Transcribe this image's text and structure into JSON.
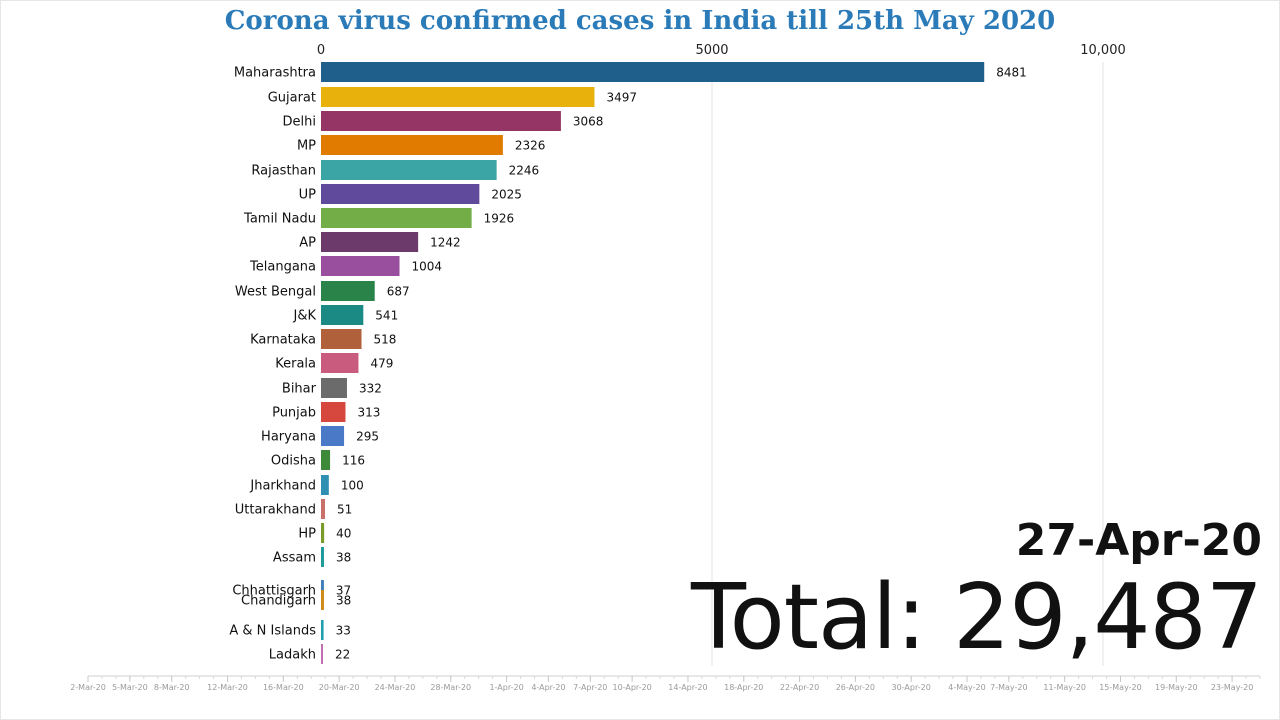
{
  "title": "Corona virus confirmed cases in India till 25th May 2020",
  "date": "27-Apr-20",
  "total": "Total: 29,487",
  "chart_data": {
    "type": "bar",
    "orientation": "horizontal",
    "title": "Corona virus confirmed cases in India till 25th May 2020",
    "xlim": [
      0,
      10000
    ],
    "x_ticks": [
      {
        "value": 0,
        "label": "0"
      },
      {
        "value": 5000,
        "label": "5000"
      },
      {
        "value": 10000,
        "label": "10,000"
      }
    ],
    "grid": true,
    "categories": [
      "Maharashtra",
      "Gujarat",
      "Delhi",
      "MP",
      "Rajasthan",
      "UP",
      "Tamil Nadu",
      "AP",
      "Telangana",
      "West Bengal",
      "J&K",
      "Karnataka",
      "Kerala",
      "Bihar",
      "Punjab",
      "Haryana",
      "Odisha",
      "Jharkhand",
      "Uttarakhand",
      "HP",
      "Assam",
      "Chhattisgarh",
      "Chandigarh",
      "A & N Islands",
      "Ladakh"
    ],
    "values": [
      8481,
      3497,
      3068,
      2326,
      2246,
      2025,
      1926,
      1242,
      1004,
      687,
      541,
      518,
      479,
      332,
      313,
      295,
      116,
      100,
      51,
      40,
      38,
      37,
      38,
      33,
      22
    ],
    "colors": [
      "#1f5f8b",
      "#e8b10c",
      "#953565",
      "#e07b00",
      "#3aa5a4",
      "#5f4a9b",
      "#72ad47",
      "#6c3b6b",
      "#9a4f9e",
      "#2a8449",
      "#1b8a85",
      "#b0603a",
      "#c95c7e",
      "#6b6b6b",
      "#d6473e",
      "#4a79c8",
      "#3f8a3a",
      "#2e8fb3",
      "#c9706a",
      "#7a9a2a",
      "#1e9a9a",
      "#3c7fb8",
      "#d08a1a",
      "#1f9faf",
      "#c070b0"
    ]
  },
  "timeline": {
    "labels": [
      "2-Mar-20",
      "5-Mar-20",
      "8-Mar-20",
      "12-Mar-20",
      "16-Mar-20",
      "20-Mar-20",
      "24-Mar-20",
      "28-Mar-20",
      "1-Apr-20",
      "4-Apr-20",
      "7-Apr-20",
      "10-Apr-20",
      "14-Apr-20",
      "18-Apr-20",
      "22-Apr-20",
      "26-Apr-20",
      "30-Apr-20",
      "4-May-20",
      "7-May-20",
      "11-May-20",
      "15-May-20",
      "19-May-20",
      "23-May-20"
    ],
    "dates": [
      "2020-03-02",
      "2020-03-05",
      "2020-03-08",
      "2020-03-12",
      "2020-03-16",
      "2020-03-20",
      "2020-03-24",
      "2020-03-28",
      "2020-04-01",
      "2020-04-04",
      "2020-04-07",
      "2020-04-10",
      "2020-04-14",
      "2020-04-18",
      "2020-04-22",
      "2020-04-26",
      "2020-04-30",
      "2020-05-04",
      "2020-05-07",
      "2020-05-11",
      "2020-05-15",
      "2020-05-19",
      "2020-05-23"
    ],
    "range": [
      "2020-03-02",
      "2020-05-25"
    ]
  },
  "colors": {
    "title": "#2b7bb9",
    "grid": "#e3e3e3",
    "text": "#111111"
  }
}
